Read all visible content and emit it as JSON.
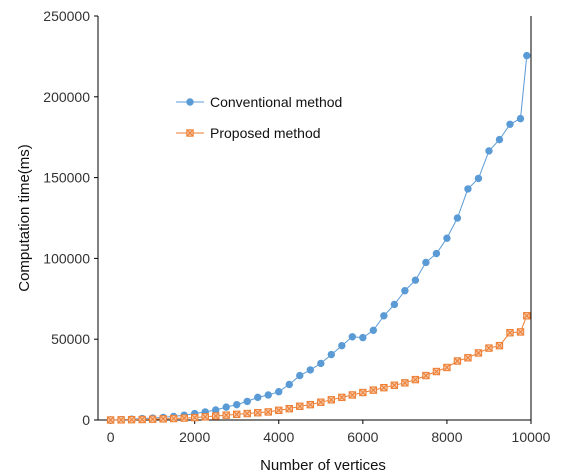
{
  "chart_data": {
    "type": "line",
    "xlabel": "Number of vertices",
    "ylabel": "Computation time(ms)",
    "xlim": [
      -300,
      10000
    ],
    "ylim": [
      0,
      250000
    ],
    "x_ticks": [
      0,
      2000,
      4000,
      6000,
      8000,
      10000
    ],
    "y_ticks": [
      0,
      50000,
      100000,
      150000,
      200000,
      250000
    ],
    "grid": false,
    "legend_position": "upper-left-inside",
    "series": [
      {
        "name": "Conventional method",
        "color": "#5b9bd5",
        "marker": "circle",
        "x": [
          0,
          250,
          500,
          750,
          1000,
          1250,
          1500,
          1750,
          2000,
          2250,
          2500,
          2750,
          3000,
          3250,
          3500,
          3750,
          4000,
          4250,
          4500,
          4750,
          5000,
          5250,
          5500,
          5750,
          6000,
          6250,
          6500,
          6750,
          7000,
          7250,
          7500,
          7750,
          8000,
          8250,
          8500,
          8750,
          9000,
          9250,
          9500,
          9750
        ],
        "values": [
          0,
          200,
          500,
          900,
          1200,
          1600,
          2200,
          3000,
          4000,
          5000,
          6200,
          8000,
          9500,
          11500,
          14000,
          15500,
          17500,
          22000,
          27500,
          31000,
          35000,
          40500,
          46000,
          51500,
          51000,
          55500,
          64500,
          71500,
          80000,
          86500,
          97500,
          103000,
          112500,
          125000,
          143000,
          149500,
          166500,
          173500,
          183000,
          186500
        ],
        "last_point": [
          9900,
          225500
        ]
      },
      {
        "name": "Proposed method",
        "color": "#ed7d31",
        "marker": "square-x",
        "x": [
          0,
          250,
          500,
          750,
          1000,
          1250,
          1500,
          1750,
          2000,
          2250,
          2500,
          2750,
          3000,
          3250,
          3500,
          3750,
          4000,
          4250,
          4500,
          4750,
          5000,
          5250,
          5500,
          5750,
          6000,
          6250,
          6500,
          6750,
          7000,
          7250,
          7500,
          7750,
          8000,
          8250,
          8500,
          8750,
          9000,
          9250,
          9500,
          9750
        ],
        "values": [
          0,
          100,
          200,
          300,
          500,
          700,
          900,
          1200,
          1500,
          2000,
          2500,
          3000,
          3500,
          4000,
          4500,
          5000,
          6000,
          7000,
          8500,
          9500,
          11000,
          12500,
          14000,
          15500,
          17000,
          18500,
          20000,
          21500,
          23000,
          25000,
          27500,
          30000,
          32500,
          36500,
          38500,
          41500,
          44500,
          46000,
          54000,
          54500
        ],
        "last_point": [
          9900,
          64500
        ]
      }
    ]
  }
}
